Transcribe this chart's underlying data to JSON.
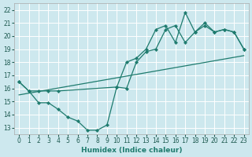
{
  "xlabel": "Humidex (Indice chaleur)",
  "xlim": [
    -0.5,
    23.5
  ],
  "ylim": [
    12.5,
    22.5
  ],
  "yticks": [
    13,
    14,
    15,
    16,
    17,
    18,
    19,
    20,
    21,
    22
  ],
  "xticks": [
    0,
    1,
    2,
    3,
    4,
    5,
    6,
    7,
    8,
    9,
    10,
    11,
    12,
    13,
    14,
    15,
    16,
    17,
    18,
    19,
    20,
    21,
    22,
    23
  ],
  "bg_color": "#cde8ee",
  "grid_color": "#ffffff",
  "line_color": "#1e7b6e",
  "line1_x": [
    0,
    1,
    2,
    3,
    4,
    5,
    6,
    7,
    8,
    9,
    10,
    11,
    12,
    13,
    14,
    15,
    16,
    17,
    18,
    19,
    20,
    21,
    22,
    23
  ],
  "line1_y": [
    16.5,
    15.8,
    14.9,
    14.9,
    14.4,
    13.8,
    13.5,
    12.8,
    12.8,
    13.2,
    16.1,
    16.0,
    18.0,
    18.8,
    19.0,
    20.5,
    20.8,
    19.5,
    20.3,
    21.0,
    20.3,
    20.5,
    20.3,
    19.0
  ],
  "line2_x": [
    0,
    1,
    2,
    3,
    4,
    10,
    11,
    12,
    13,
    14,
    15,
    16,
    17,
    18,
    19,
    20,
    21,
    22,
    23
  ],
  "line2_y": [
    16.5,
    15.8,
    15.8,
    15.8,
    15.8,
    16.1,
    18.0,
    18.3,
    19.0,
    20.5,
    20.8,
    19.5,
    21.8,
    20.3,
    20.8,
    20.3,
    20.5,
    20.3,
    19.0
  ],
  "trend_x": [
    0,
    23
  ],
  "trend_y": [
    15.5,
    18.5
  ]
}
